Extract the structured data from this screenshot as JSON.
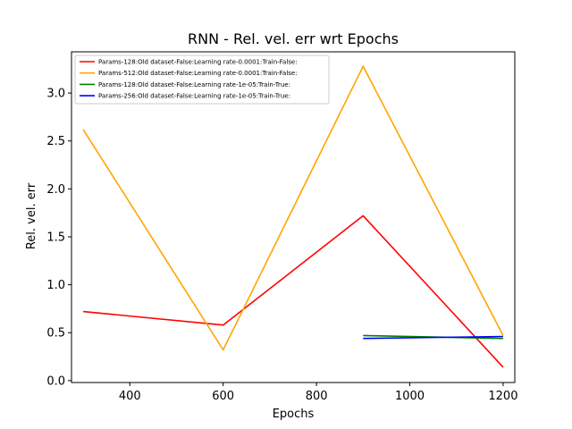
{
  "chart_data": {
    "type": "line",
    "title": "RNN - Rel. vel. err wrt Epochs",
    "xlabel": "Epochs",
    "ylabel": "Rel. vel. err",
    "xlim": [
      275,
      1225
    ],
    "ylim": [
      -0.02,
      3.43
    ],
    "xticks": [
      400,
      600,
      800,
      1000,
      1200
    ],
    "yticks": [
      0.0,
      0.5,
      1.0,
      1.5,
      2.0,
      2.5,
      3.0
    ],
    "xtick_labels": [
      "400",
      "600",
      "800",
      "1000",
      "1200"
    ],
    "ytick_labels": [
      "0.0",
      "0.5",
      "1.0",
      "1.5",
      "2.0",
      "2.5",
      "3.0"
    ],
    "grid": false,
    "legend_position": "top-left",
    "series": [
      {
        "name": "Params-128:Old dataset-False:Learning rate-0.0001:Train-False:",
        "color": "#ff0000",
        "x": [
          300,
          600,
          900,
          1200
        ],
        "y": [
          0.72,
          0.58,
          1.72,
          0.14
        ]
      },
      {
        "name": "Params-512:Old dataset-False:Learning rate-0.0001:Train-False:",
        "color": "#ffa500",
        "x": [
          300,
          600,
          900,
          1200
        ],
        "y": [
          2.62,
          0.32,
          3.28,
          0.47
        ]
      },
      {
        "name": "Params-128:Old dataset-False:Learning rate-1e-05:Train-True:",
        "color": "#008000",
        "x": [
          900,
          1200
        ],
        "y": [
          0.47,
          0.44
        ]
      },
      {
        "name": "Params-256:Old dataset-False:Learning rate-1e-05:Train-True:",
        "color": "#0000ff",
        "x": [
          900,
          1200
        ],
        "y": [
          0.44,
          0.46
        ]
      }
    ]
  }
}
